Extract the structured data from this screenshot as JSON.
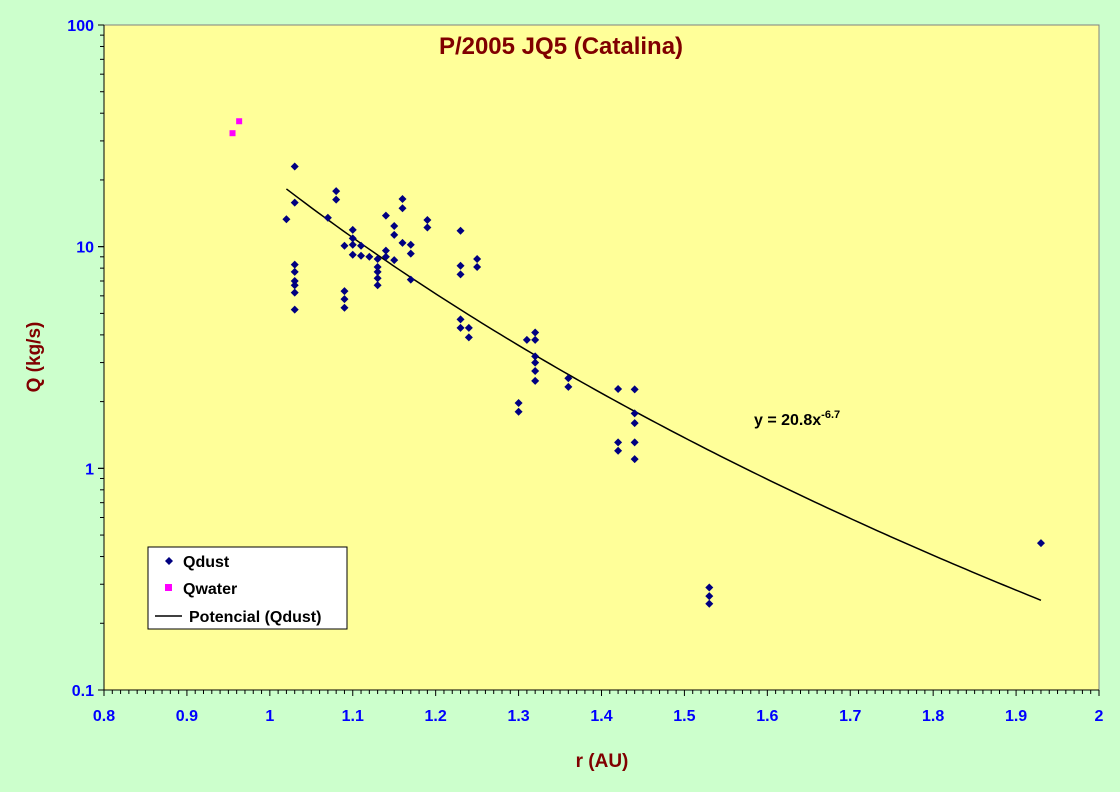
{
  "chart_data": {
    "type": "scatter",
    "title": "P/2005 JQ5 (Catalina)",
    "xlabel": "r (AU)",
    "ylabel": "Q (kg/s)",
    "xlim": [
      0.8,
      2
    ],
    "ylim": [
      0.1,
      100
    ],
    "yscale": "log",
    "x_ticks": [
      "0.8",
      "0.9",
      "1",
      "1.1",
      "1.2",
      "1.3",
      "1.4",
      "1.5",
      "1.6",
      "1.7",
      "1.8",
      "1.9",
      "2"
    ],
    "y_ticks": [
      "0.1",
      "1",
      "10",
      "100"
    ],
    "grid": false,
    "legend_position": "bottom-left",
    "colors": {
      "plot_background": "#ffff99",
      "page_background": "#ccffcc",
      "qdust": "#000080",
      "qwater": "#ff00ff",
      "trend": "#000000",
      "tick_labels": "#0000ff",
      "titles": "#800000"
    },
    "series": [
      {
        "name": "Qdust",
        "marker": "diamond",
        "points": [
          [
            1.02,
            13.3
          ],
          [
            1.03,
            23
          ],
          [
            1.03,
            15.8
          ],
          [
            1.03,
            8.3
          ],
          [
            1.03,
            7.7
          ],
          [
            1.03,
            7.0
          ],
          [
            1.03,
            6.7
          ],
          [
            1.03,
            6.2
          ],
          [
            1.03,
            5.2
          ],
          [
            1.07,
            13.5
          ],
          [
            1.08,
            17.8
          ],
          [
            1.08,
            16.3
          ],
          [
            1.09,
            10.1
          ],
          [
            1.09,
            6.3
          ],
          [
            1.09,
            5.8
          ],
          [
            1.09,
            5.3
          ],
          [
            1.1,
            11.9
          ],
          [
            1.1,
            10.9
          ],
          [
            1.1,
            10.2
          ],
          [
            1.1,
            9.2
          ],
          [
            1.11,
            10.1
          ],
          [
            1.11,
            9.1
          ],
          [
            1.12,
            9.0
          ],
          [
            1.13,
            8.8
          ],
          [
            1.13,
            8.1
          ],
          [
            1.13,
            7.7
          ],
          [
            1.13,
            7.2
          ],
          [
            1.13,
            6.7
          ],
          [
            1.14,
            13.8
          ],
          [
            1.14,
            9.6
          ],
          [
            1.14,
            9.0
          ],
          [
            1.15,
            12.4
          ],
          [
            1.15,
            11.3
          ],
          [
            1.15,
            8.7
          ],
          [
            1.16,
            16.4
          ],
          [
            1.16,
            14.9
          ],
          [
            1.16,
            10.4
          ],
          [
            1.17,
            10.2
          ],
          [
            1.17,
            9.3
          ],
          [
            1.17,
            7.1
          ],
          [
            1.19,
            13.2
          ],
          [
            1.19,
            12.2
          ],
          [
            1.23,
            11.8
          ],
          [
            1.23,
            8.2
          ],
          [
            1.23,
            7.5
          ],
          [
            1.23,
            4.7
          ],
          [
            1.23,
            4.3
          ],
          [
            1.24,
            4.3
          ],
          [
            1.24,
            3.9
          ],
          [
            1.25,
            8.8
          ],
          [
            1.25,
            8.1
          ],
          [
            1.3,
            1.97
          ],
          [
            1.3,
            1.8
          ],
          [
            1.31,
            3.8
          ],
          [
            1.32,
            4.1
          ],
          [
            1.32,
            3.8
          ],
          [
            1.32,
            3.2
          ],
          [
            1.32,
            3.0
          ],
          [
            1.32,
            2.75
          ],
          [
            1.32,
            2.48
          ],
          [
            1.36,
            2.55
          ],
          [
            1.36,
            2.33
          ],
          [
            1.42,
            2.28
          ],
          [
            1.42,
            1.31
          ],
          [
            1.42,
            1.2
          ],
          [
            1.44,
            2.27
          ],
          [
            1.44,
            1.77
          ],
          [
            1.44,
            1.6
          ],
          [
            1.44,
            1.31
          ],
          [
            1.44,
            1.1
          ],
          [
            1.53,
            0.29
          ],
          [
            1.53,
            0.265
          ],
          [
            1.53,
            0.245
          ],
          [
            1.93,
            0.46
          ]
        ]
      },
      {
        "name": "Qwater",
        "marker": "square",
        "points": [
          [
            0.955,
            32.5
          ],
          [
            0.963,
            36.8
          ]
        ]
      },
      {
        "name": "Potencial (Qdust)",
        "type": "line",
        "fit": "power",
        "coefficient": 20.8,
        "exponent": -6.7,
        "x_range": [
          1.02,
          1.93
        ]
      }
    ],
    "annotations": [
      {
        "text": "y = 20.8x",
        "superscript": "-6.7",
        "x": 1.59,
        "y": 1.68
      }
    ]
  }
}
